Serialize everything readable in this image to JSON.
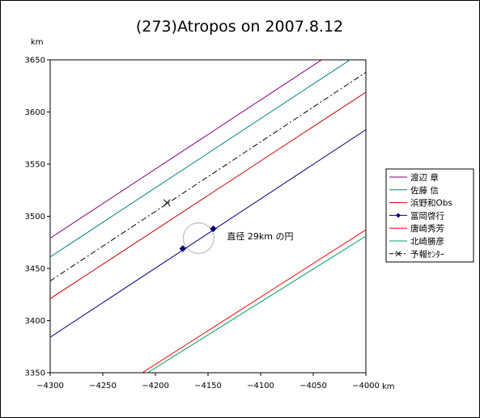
{
  "chart_data": {
    "type": "line",
    "title": "(273)Atropos on 2007.8.12",
    "xunit": "km",
    "yunit": "km",
    "xlim": [
      -4300,
      -4000
    ],
    "ylim": [
      3350,
      3650
    ],
    "xticks": [
      -4300,
      -4250,
      -4200,
      -4150,
      -4100,
      -4050,
      -4000
    ],
    "yticks": [
      3350,
      3400,
      3450,
      3500,
      3550,
      3600,
      3650
    ],
    "xtick_labels": [
      "−4300",
      "−4250",
      "−4200",
      "−4150",
      "−4100",
      "−4050",
      "−4000"
    ],
    "ytick_labels": [
      "3350",
      "3400",
      "3450",
      "3500",
      "3550",
      "3600",
      "3650"
    ],
    "series": [
      {
        "name": "渡辺 章",
        "color": "#800080",
        "style": "solid",
        "marker": "none",
        "points": [
          [
            -4300,
            3479
          ],
          [
            -4036,
            3654
          ]
        ]
      },
      {
        "name": "佐藤 信",
        "color": "#008080",
        "style": "solid",
        "marker": "none",
        "points": [
          [
            -4300,
            3461
          ],
          [
            -4009,
            3654
          ]
        ]
      },
      {
        "name": "浜野和Obs",
        "color": "#cc0000",
        "style": "solid",
        "marker": "none",
        "points": [
          [
            -4300,
            3421
          ],
          [
            -4000,
            3619
          ]
        ]
      },
      {
        "name": "冨岡啓行",
        "color": "#000080",
        "style": "solid",
        "marker": "diamond",
        "points": [
          [
            -4300,
            3384
          ],
          [
            -4000,
            3583
          ]
        ],
        "markers": [
          [
            -4174,
            3469
          ],
          [
            -4145,
            3488
          ]
        ]
      },
      {
        "name": "唐崎秀芳",
        "color": "#ff0000",
        "style": "solid",
        "marker": "none",
        "points": [
          [
            -4214,
            3349
          ],
          [
            -4000,
            3487
          ]
        ]
      },
      {
        "name": "北崎勝彦",
        "color": "#00a060",
        "style": "solid",
        "marker": "none",
        "points": [
          [
            -4209,
            3349
          ],
          [
            -4000,
            3481
          ]
        ]
      },
      {
        "name": "予報ｾﾝﾀｰ",
        "color": "#000000",
        "style": "dashdot",
        "marker": "x",
        "points": [
          [
            -4300,
            3438
          ],
          [
            -4000,
            3638
          ]
        ],
        "markers": [
          [
            -4189,
            3513
          ]
        ]
      }
    ],
    "circle": {
      "label": "直径 29km の円",
      "center": [
        -4159,
        3479
      ],
      "diameter": 29,
      "color": "#c8c8c8"
    },
    "grid": false,
    "legend_position": "right"
  }
}
